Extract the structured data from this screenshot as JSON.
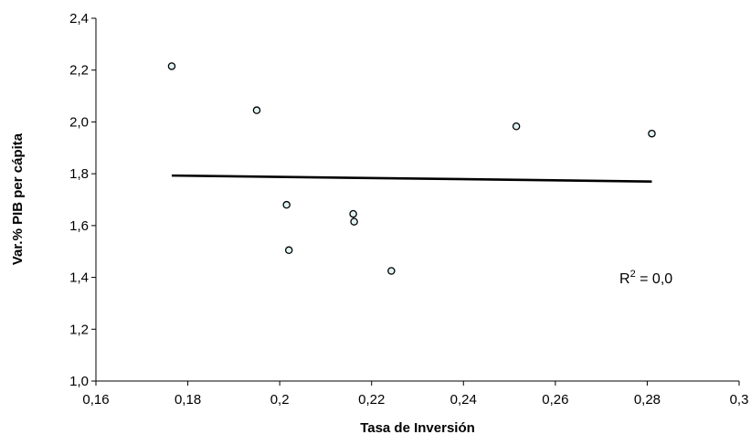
{
  "chart_data": {
    "type": "scatter",
    "title": "",
    "xlabel": "Tasa de Inversión",
    "ylabel": "Var.% PIB per cápita",
    "xlim": [
      0.16,
      0.3
    ],
    "ylim": [
      1.0,
      2.4
    ],
    "xticks": [
      0.16,
      0.18,
      0.2,
      0.22,
      0.24,
      0.26,
      0.28,
      0.3
    ],
    "yticks": [
      1.0,
      1.2,
      1.4,
      1.6,
      1.8,
      2.0,
      2.2,
      2.4
    ],
    "xtick_labels": [
      "0,16",
      "0,18",
      "0,2",
      "0,22",
      "0,24",
      "0,26",
      "0,28",
      "0,3"
    ],
    "ytick_labels": [
      "1,0",
      "1,2",
      "1,4",
      "1,6",
      "1,8",
      "2,0",
      "2,2",
      "2,4"
    ],
    "points": [
      {
        "x": 0.1765,
        "y": 2.215
      },
      {
        "x": 0.195,
        "y": 2.045
      },
      {
        "x": 0.2015,
        "y": 1.68
      },
      {
        "x": 0.202,
        "y": 1.505
      },
      {
        "x": 0.216,
        "y": 1.645
      },
      {
        "x": 0.2162,
        "y": 1.615
      },
      {
        "x": 0.2243,
        "y": 1.425
      },
      {
        "x": 0.2515,
        "y": 1.983
      },
      {
        "x": 0.281,
        "y": 1.955
      }
    ],
    "trendline": {
      "x": [
        0.1765,
        0.281
      ],
      "y": [
        1.793,
        1.77
      ]
    },
    "annotation": {
      "base": "R",
      "sup": "2",
      "rest": " = 0,0"
    },
    "grid": false,
    "legend": "none",
    "colors": {
      "marker_fill": "#dff3f3",
      "marker_stroke": "#000000",
      "trendline": "#000000",
      "axis": "#000000"
    }
  }
}
